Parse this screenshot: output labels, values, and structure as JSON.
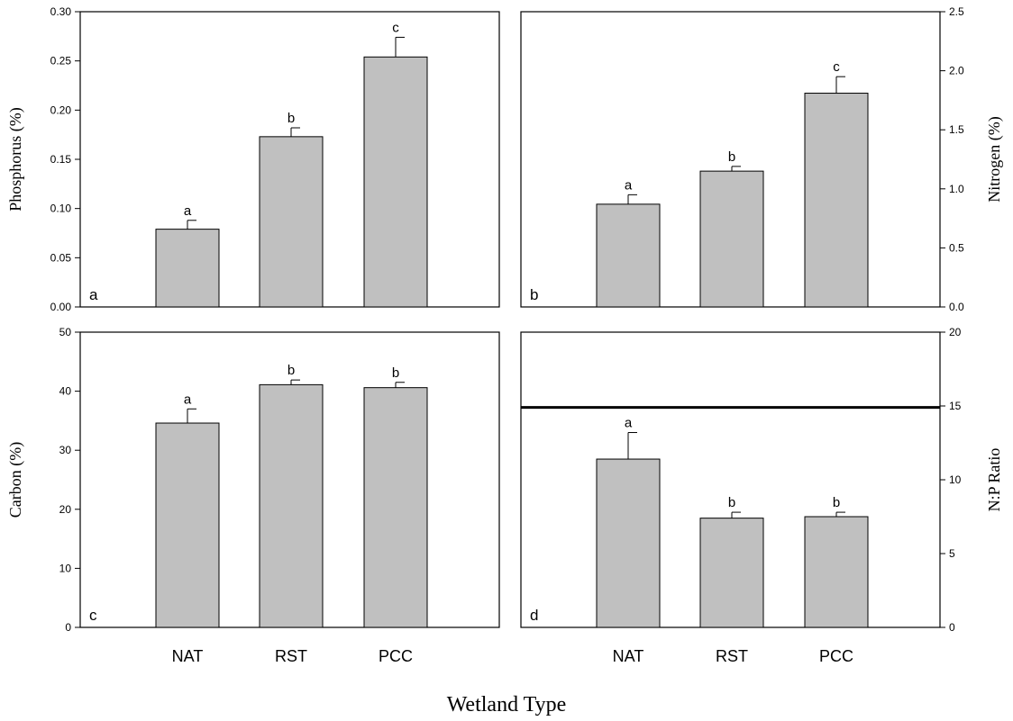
{
  "figure": {
    "xlabel": "Wetland Type"
  },
  "chart_data": [
    {
      "type": "bar",
      "panel": "a",
      "categories": [
        "NAT",
        "RST",
        "PCC"
      ],
      "values": [
        0.079,
        0.173,
        0.254
      ],
      "errors": [
        0.009,
        0.009,
        0.02
      ],
      "sig_labels": [
        "a",
        "b",
        "c"
      ],
      "ylabel": "Phosphorus (%)",
      "ylim": [
        0,
        0.3
      ],
      "yticks": [
        0.0,
        0.05,
        0.1,
        0.15,
        0.2,
        0.25,
        0.3
      ],
      "ytick_labels": [
        "0.00",
        "0.05",
        "0.10",
        "0.15",
        "0.20",
        "0.25",
        "0.30"
      ],
      "yaxis_side": "left",
      "show_xtick_labels": false
    },
    {
      "type": "bar",
      "panel": "b",
      "categories": [
        "NAT",
        "RST",
        "PCC"
      ],
      "values": [
        0.87,
        1.15,
        1.81
      ],
      "errors": [
        0.08,
        0.04,
        0.14
      ],
      "sig_labels": [
        "a",
        "b",
        "c"
      ],
      "ylabel": "Nitrogen (%)",
      "ylim": [
        0,
        2.5
      ],
      "yticks": [
        0,
        0.5,
        1.0,
        1.5,
        2.0,
        2.5
      ],
      "ytick_labels": [
        "0.0",
        "0.5",
        "1.0",
        "1.5",
        "2.0",
        "2.5"
      ],
      "yaxis_side": "right",
      "show_xtick_labels": false
    },
    {
      "type": "bar",
      "panel": "c",
      "categories": [
        "NAT",
        "RST",
        "PCC"
      ],
      "values": [
        34.6,
        41.1,
        40.6
      ],
      "errors": [
        2.4,
        0.8,
        0.9
      ],
      "sig_labels": [
        "a",
        "b",
        "b"
      ],
      "ylabel": "Carbon (%)",
      "ylim": [
        0,
        50
      ],
      "yticks": [
        0,
        10,
        20,
        30,
        40,
        50
      ],
      "ytick_labels": [
        "0",
        "10",
        "20",
        "30",
        "40",
        "50"
      ],
      "yaxis_side": "left",
      "show_xtick_labels": true
    },
    {
      "type": "bar",
      "panel": "d",
      "categories": [
        "NAT",
        "RST",
        "PCC"
      ],
      "values": [
        11.4,
        7.4,
        7.5
      ],
      "errors": [
        1.8,
        0.4,
        0.3
      ],
      "sig_labels": [
        "a",
        "b",
        "b"
      ],
      "ylabel": "N:P Ratio",
      "ylim": [
        0,
        20
      ],
      "yticks": [
        0,
        5,
        10,
        15,
        20
      ],
      "ytick_labels": [
        "0",
        "5",
        "10",
        "15",
        "20"
      ],
      "yaxis_side": "right",
      "show_xtick_labels": true,
      "reference_line": 14.9
    }
  ]
}
